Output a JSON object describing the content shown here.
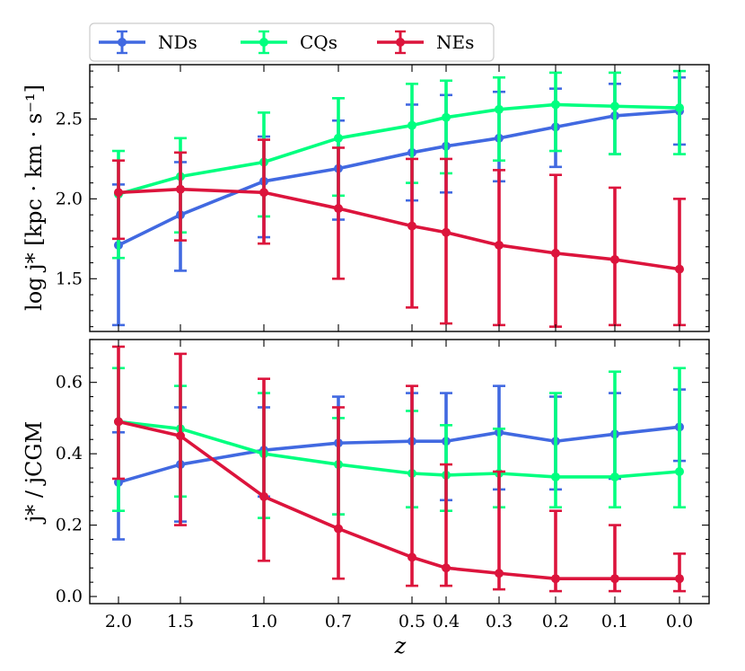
{
  "chart_data": [
    {
      "type": "line",
      "panel": "top",
      "ylabel": "log j* [kpc · km · s⁻¹]",
      "ylim": [
        1.17,
        2.84
      ],
      "yticks": [
        1.5,
        2.0,
        2.5
      ],
      "ytick_labels": [
        "1.5",
        "2.0",
        "2.5"
      ],
      "x": [
        2.0,
        1.5,
        1.0,
        0.7,
        0.5,
        0.4,
        0.3,
        0.2,
        0.1,
        0.0
      ],
      "series": [
        {
          "name": "NDs",
          "color": "#4169e1",
          "values": [
            1.71,
            1.9,
            2.11,
            2.19,
            2.29,
            2.33,
            2.38,
            2.45,
            2.52,
            2.55
          ],
          "err_low": [
            1.21,
            1.55,
            1.76,
            1.87,
            1.99,
            2.04,
            2.11,
            2.2,
            2.28,
            2.34
          ],
          "err_high": [
            2.09,
            2.23,
            2.39,
            2.49,
            2.59,
            2.65,
            2.67,
            2.69,
            2.72,
            2.76
          ]
        },
        {
          "name": "CQs",
          "color": "#00ff7f",
          "values": [
            2.03,
            2.14,
            2.23,
            2.38,
            2.46,
            2.51,
            2.56,
            2.59,
            2.58,
            2.57
          ],
          "err_low": [
            1.63,
            1.79,
            1.89,
            2.02,
            2.1,
            2.16,
            2.24,
            2.3,
            2.28,
            2.28
          ],
          "err_high": [
            2.3,
            2.38,
            2.54,
            2.63,
            2.72,
            2.74,
            2.76,
            2.79,
            2.79,
            2.8
          ]
        },
        {
          "name": "NEs",
          "color": "#dc143c",
          "values": [
            2.04,
            2.06,
            2.04,
            1.94,
            1.83,
            1.79,
            1.71,
            1.66,
            1.62,
            1.56
          ],
          "err_low": [
            1.75,
            1.74,
            1.72,
            1.5,
            1.32,
            1.22,
            1.21,
            1.2,
            1.21,
            1.21
          ],
          "err_high": [
            2.24,
            2.29,
            2.37,
            2.32,
            2.25,
            2.25,
            2.18,
            2.15,
            2.07,
            2.0
          ]
        }
      ]
    },
    {
      "type": "line",
      "panel": "bottom",
      "ylabel": "j* / jCGM",
      "ylim": [
        -0.02,
        0.72
      ],
      "yticks": [
        0.0,
        0.2,
        0.4,
        0.6
      ],
      "ytick_labels": [
        "0.0",
        "0.2",
        "0.4",
        "0.6"
      ],
      "xlabel": "z",
      "x": [
        2.0,
        1.5,
        1.0,
        0.7,
        0.5,
        0.4,
        0.3,
        0.2,
        0.1,
        0.0
      ],
      "xtick_labels": [
        "2.0",
        "1.5",
        "1.0",
        "0.7",
        "0.5",
        "0.4",
        "0.3",
        "0.2",
        "0.1",
        "0.0"
      ],
      "series": [
        {
          "name": "NDs",
          "color": "#4169e1",
          "values": [
            0.32,
            0.37,
            0.41,
            0.43,
            0.435,
            0.435,
            0.46,
            0.435,
            0.455,
            0.475
          ],
          "err_low": [
            0.16,
            0.21,
            0.28,
            0.23,
            0.25,
            0.27,
            0.3,
            0.3,
            0.33,
            0.38
          ],
          "err_high": [
            0.46,
            0.53,
            0.53,
            0.56,
            0.57,
            0.57,
            0.59,
            0.56,
            0.57,
            0.58
          ]
        },
        {
          "name": "CQs",
          "color": "#00ff7f",
          "values": [
            0.49,
            0.47,
            0.4,
            0.37,
            0.345,
            0.34,
            0.345,
            0.335,
            0.335,
            0.35
          ],
          "err_low": [
            0.24,
            0.28,
            0.22,
            0.23,
            0.25,
            0.24,
            0.25,
            0.25,
            0.25,
            0.25
          ],
          "err_high": [
            0.64,
            0.59,
            0.57,
            0.5,
            0.52,
            0.48,
            0.47,
            0.57,
            0.63,
            0.64
          ]
        },
        {
          "name": "NEs",
          "color": "#dc143c",
          "values": [
            0.49,
            0.45,
            0.28,
            0.19,
            0.11,
            0.08,
            0.065,
            0.05,
            0.05,
            0.05
          ],
          "err_low": [
            0.33,
            0.2,
            0.1,
            0.05,
            0.03,
            0.03,
            0.02,
            0.015,
            0.015,
            0.015
          ],
          "err_high": [
            0.7,
            0.68,
            0.61,
            0.53,
            0.59,
            0.37,
            0.35,
            0.24,
            0.2,
            0.12
          ]
        }
      ]
    }
  ],
  "legend": {
    "placement": "top-left, above plots",
    "entries": [
      "NDs",
      "CQs",
      "NEs"
    ]
  }
}
